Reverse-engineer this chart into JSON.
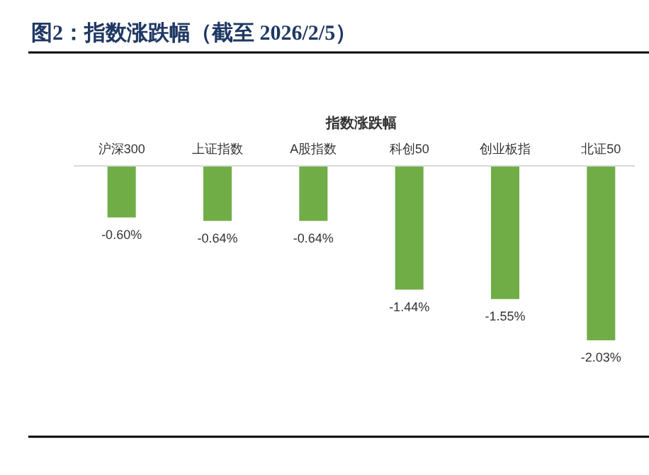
{
  "chart_data": {
    "type": "bar",
    "title": "图2：指数涨跌幅（截至 2026/2/5）",
    "subtitle": "指数涨跌幅",
    "categories": [
      "沪深300",
      "上证指数",
      "A股指数",
      "科创50",
      "创业板指",
      "北证50"
    ],
    "values": [
      -0.6,
      -0.64,
      -0.64,
      -1.44,
      -1.55,
      -2.03
    ],
    "value_labels": [
      "-0.60%",
      "-0.64%",
      "-0.64%",
      "-1.44%",
      "-1.55%",
      "-2.03%"
    ],
    "color": "#70ad47"
  }
}
